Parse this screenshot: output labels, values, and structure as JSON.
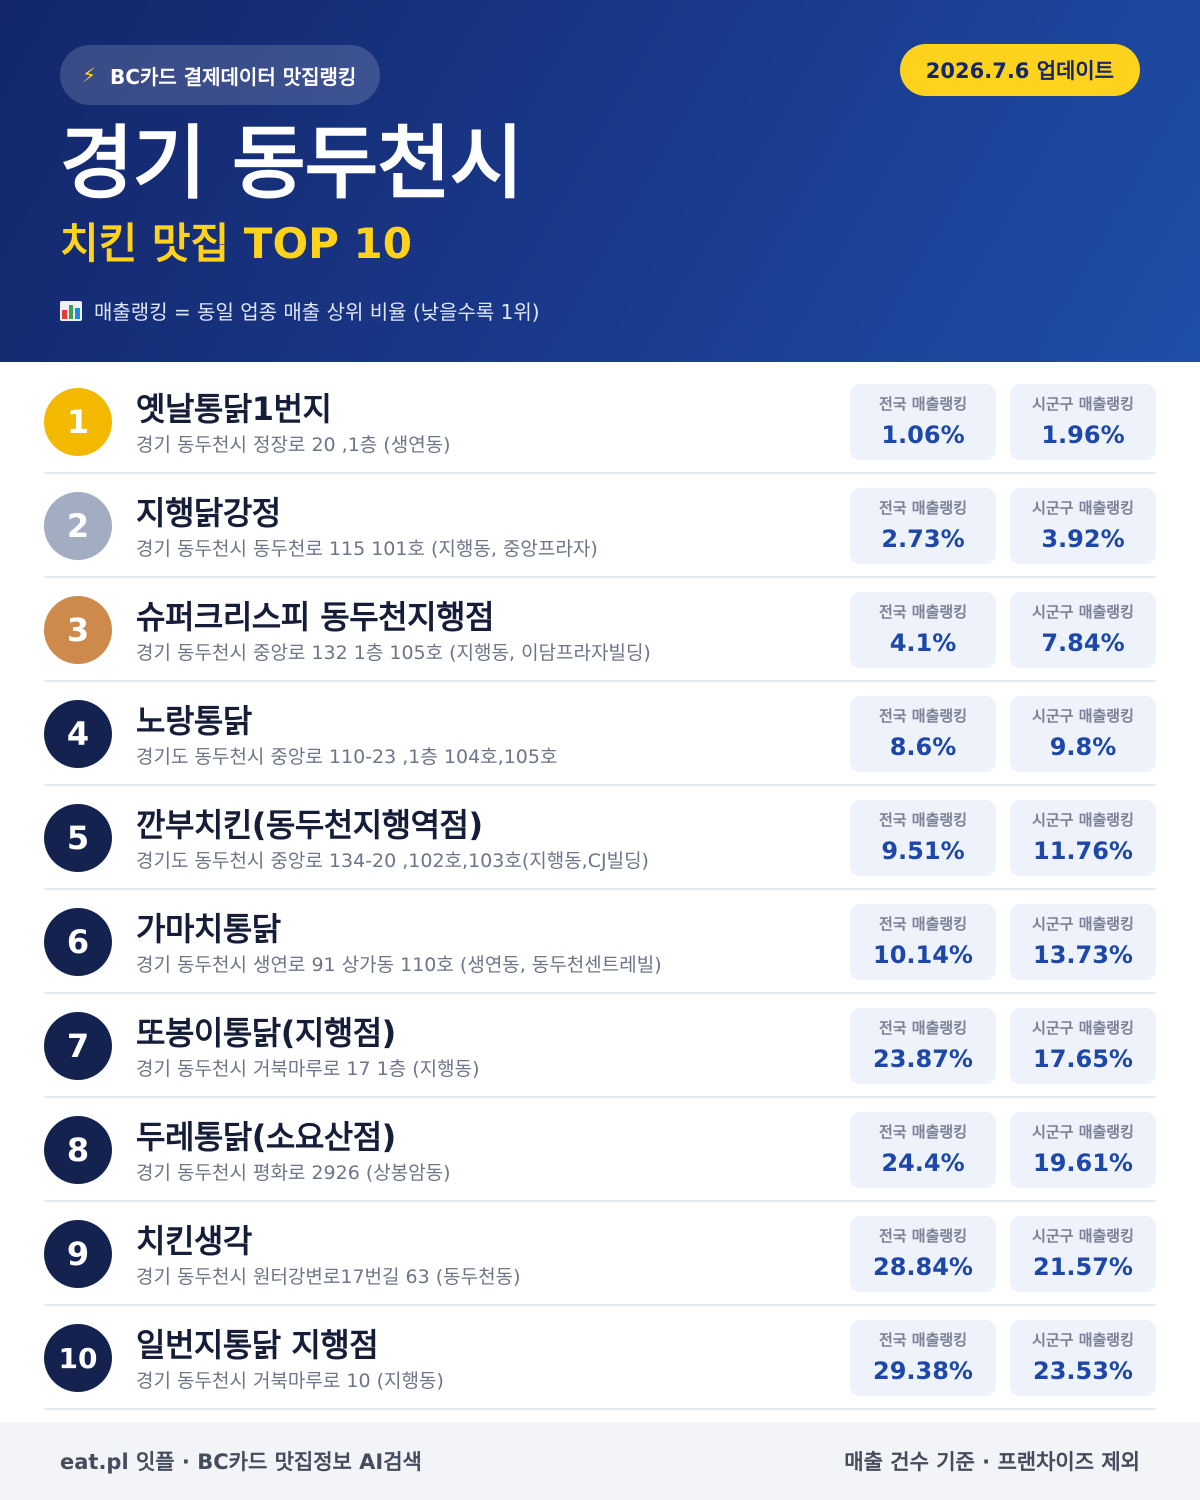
{
  "header": {
    "source": "BC카드 결제데이터 맛집랭킹",
    "bolt_icon": "⚡",
    "update_date": "2026.7.6 업데이트",
    "region": "경기 동두천시",
    "subtitle": "치킨 맛집 TOP 10",
    "note": "매출랭킹 = 동일 업종 매출 상위 비율 (낮을수록 1위)"
  },
  "labels": {
    "national": "전국 매출랭킹",
    "local": "시군구 매출랭킹"
  },
  "colors": {
    "header_dark": "#13266a",
    "accent_yellow": "#ffd21e",
    "gold": "#f3b800",
    "silver": "#a3adc1",
    "bronze": "#cd8a4b",
    "navy": "#13224f",
    "value_blue": "#1d47a8"
  },
  "items": [
    {
      "rank": "1",
      "name": "옛날통닭1번지",
      "address": "경기 동두천시 정장로 20 ,1층 (생연동)",
      "national": "1.06%",
      "local": "1.96%"
    },
    {
      "rank": "2",
      "name": "지행닭강정",
      "address": "경기 동두천시 동두천로 115 101호 (지행동, 중앙프라자)",
      "national": "2.73%",
      "local": "3.92%"
    },
    {
      "rank": "3",
      "name": "슈퍼크리스피 동두천지행점",
      "address": "경기 동두천시 중앙로 132 1층 105호 (지행동, 이담프라자빌딩)",
      "national": "4.1%",
      "local": "7.84%"
    },
    {
      "rank": "4",
      "name": "노랑통닭",
      "address": "경기도 동두천시 중앙로 110-23 ,1층 104호,105호",
      "national": "8.6%",
      "local": "9.8%"
    },
    {
      "rank": "5",
      "name": "깐부치킨(동두천지행역점)",
      "address": "경기도 동두천시 중앙로 134-20 ,102호,103호(지행동,CJ빌딩)",
      "national": "9.51%",
      "local": "11.76%"
    },
    {
      "rank": "6",
      "name": "가마치통닭",
      "address": "경기 동두천시 생연로 91 상가동 110호 (생연동, 동두천센트레빌)",
      "national": "10.14%",
      "local": "13.73%"
    },
    {
      "rank": "7",
      "name": "또봉이통닭(지행점)",
      "address": "경기 동두천시 거북마루로 17 1층 (지행동)",
      "national": "23.87%",
      "local": "17.65%"
    },
    {
      "rank": "8",
      "name": "두레통닭(소요산점)",
      "address": "경기 동두천시 평화로 2926 (상봉암동)",
      "national": "24.4%",
      "local": "19.61%"
    },
    {
      "rank": "9",
      "name": "치킨생각",
      "address": "경기 동두천시 원터강변로17번길 63 (동두천동)",
      "national": "28.84%",
      "local": "21.57%"
    },
    {
      "rank": "10",
      "name": "일번지통닭 지행점",
      "address": "경기 동두천시 거북마루로 10 (지행동)",
      "national": "29.38%",
      "local": "23.53%"
    }
  ],
  "footer": {
    "left": "eat.pl 잇플 · BC카드 맛집정보 AI검색",
    "right": "매출 건수 기준 · 프랜차이즈 제외"
  }
}
